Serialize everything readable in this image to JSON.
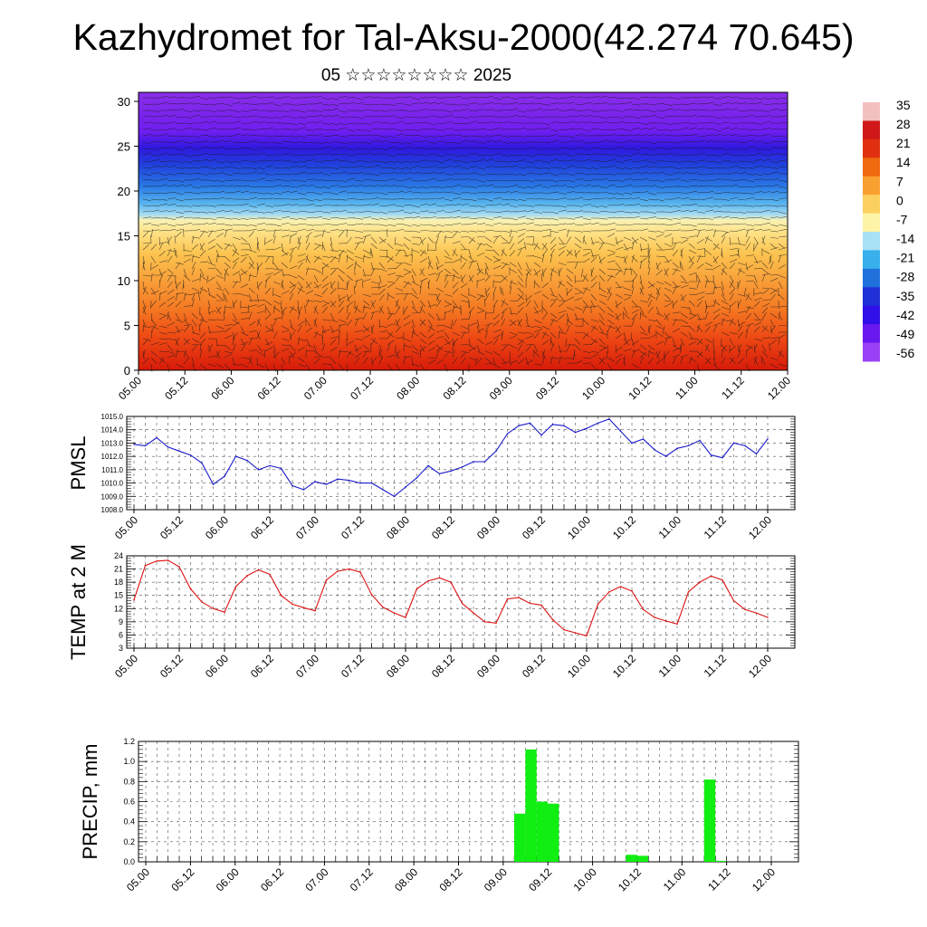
{
  "title": "Kazhydromet for Tal-Aksu-2000(42.274 70.645)",
  "subtitle": "05 ☆☆☆☆☆☆☆☆ 2025",
  "colorbar": {
    "labels": [
      "35",
      "28",
      "21",
      "14",
      "7",
      "0",
      "-7",
      "-14",
      "-21",
      "-28",
      "-35",
      "-42",
      "-49",
      "-56"
    ],
    "colors": [
      "#f3c0c0",
      "#d01818",
      "#e03010",
      "#f06a10",
      "#f8a030",
      "#fcd060",
      "#fef4a8",
      "#a8e0f4",
      "#38b0ec",
      "#2070dc",
      "#2030d8",
      "#3010e8",
      "#6a18f0",
      "#9a40f6"
    ]
  },
  "chart_data": [
    {
      "type": "heatmap",
      "name": "temperature-wind-profile",
      "ylim": [
        0,
        30
      ],
      "yticks": [
        "0",
        "5",
        "10",
        "15",
        "20",
        "25",
        "30"
      ],
      "xticks": [
        "05.00",
        "05.12",
        "06.00",
        "06.12",
        "07.00",
        "07.12",
        "08.00",
        "08.12",
        "09.00",
        "09.12",
        "10.00",
        "10.12",
        "11.00",
        "11.12",
        "12.00"
      ]
    },
    {
      "type": "line",
      "ylabel": "PMSL",
      "color": "#1a1acc",
      "ylim": [
        1008,
        1015
      ],
      "yticks": [
        "1008.0",
        "1009.0",
        "1010.0",
        "1011.0",
        "1012.0",
        "1013.0",
        "1014.0",
        "1015.0"
      ],
      "xticks": [
        "05.00",
        "05.12",
        "06.00",
        "06.12",
        "07.00",
        "07.12",
        "08.00",
        "08.12",
        "09.00",
        "09.12",
        "10.00",
        "10.12",
        "11.00",
        "11.12",
        "12.00"
      ],
      "values": [
        1012.9,
        1012.8,
        1013.4,
        1012.7,
        1012.4,
        1012.1,
        1011.5,
        1009.9,
        1010.5,
        1012.0,
        1011.7,
        1011.0,
        1011.3,
        1011.1,
        1009.8,
        1009.5,
        1010.1,
        1009.9,
        1010.3,
        1010.2,
        1010.0,
        1010.0,
        1009.5,
        1009.0,
        1009.7,
        1010.4,
        1011.3,
        1010.7,
        1010.9,
        1011.2,
        1011.6,
        1011.6,
        1012.4,
        1013.7,
        1014.3,
        1014.5,
        1013.6,
        1014.4,
        1014.3,
        1013.8,
        1014.1,
        1014.5,
        1014.8,
        1013.9,
        1013.0,
        1013.3,
        1012.5,
        1012.0,
        1012.6,
        1012.8,
        1013.2,
        1012.1,
        1011.9,
        1013.0,
        1012.8,
        1012.2,
        1013.3
      ]
    },
    {
      "type": "line",
      "ylabel": "TEMP at 2 M",
      "color": "#dd1111",
      "ylim": [
        3,
        24
      ],
      "yticks": [
        "3",
        "6",
        "9",
        "12",
        "15",
        "18",
        "21",
        "24"
      ],
      "xticks": [
        "05.00",
        "05.12",
        "06.00",
        "06.12",
        "07.00",
        "07.12",
        "08.00",
        "08.12",
        "09.00",
        "09.12",
        "10.00",
        "10.12",
        "11.00",
        "11.12",
        "12.00"
      ],
      "values": [
        14.0,
        21.8,
        22.8,
        23.0,
        21.5,
        16.5,
        13.5,
        12.0,
        11.2,
        17.0,
        19.5,
        20.8,
        19.8,
        15.0,
        13.0,
        12.2,
        11.5,
        18.5,
        20.5,
        21.0,
        20.3,
        15.2,
        12.3,
        11.0,
        10.0,
        16.5,
        18.3,
        19.0,
        18.0,
        13.2,
        11.0,
        9.0,
        8.7,
        14.2,
        14.5,
        13.2,
        12.8,
        9.5,
        7.2,
        6.5,
        5.8,
        13.0,
        15.8,
        17.0,
        16.0,
        11.8,
        10.0,
        9.2,
        8.5,
        15.8,
        18.0,
        19.4,
        18.5,
        13.8,
        11.8,
        11.0,
        10.0
      ]
    },
    {
      "type": "bar",
      "ylabel": "PRECIP, mm",
      "color": "#11ee11",
      "ylim": [
        0,
        1.2
      ],
      "yticks": [
        "0.0",
        "0.2",
        "0.4",
        "0.6",
        "0.8",
        "1.0",
        "1.2"
      ],
      "xticks": [
        "05.00",
        "05.12",
        "06.00",
        "06.12",
        "07.00",
        "07.12",
        "08.00",
        "08.12",
        "09.00",
        "09.12",
        "10.00",
        "10.12",
        "11.00",
        "11.12",
        "12.00"
      ],
      "values": [
        0,
        0,
        0,
        0,
        0,
        0,
        0,
        0,
        0,
        0,
        0,
        0,
        0,
        0,
        0,
        0,
        0,
        0,
        0,
        0,
        0,
        0,
        0,
        0,
        0,
        0,
        0,
        0,
        0,
        0,
        0,
        0,
        0,
        0.48,
        1.12,
        0.6,
        0.58,
        0,
        0,
        0,
        0,
        0,
        0,
        0.07,
        0.06,
        0,
        0,
        0,
        0,
        0,
        0.82,
        0.01,
        0,
        0,
        0,
        0,
        0
      ]
    }
  ]
}
